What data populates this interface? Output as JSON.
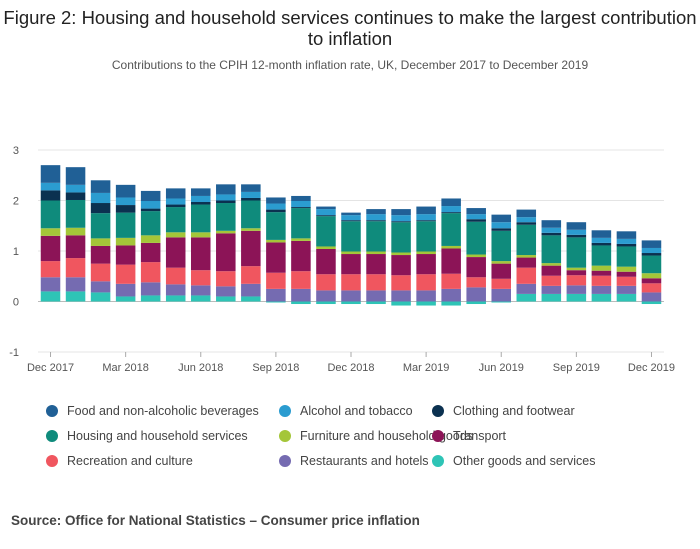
{
  "header": {
    "title": "Figure 2: Housing and household services continues to make the largest contribution to inflation",
    "subtitle": "Contributions to the CPIH 12-month inflation rate, UK, December 2017 to December 2019"
  },
  "footer": {
    "source": "Source: Office for National Statistics – Consumer price inflation"
  },
  "chart_data": {
    "type": "bar",
    "stacked": true,
    "title": "Figure 2: Housing and household services continues to make the largest contribution to inflation",
    "subtitle": "Contributions to the CPIH 12-month inflation rate, UK, December 2017 to December 2019",
    "xlabel": "",
    "ylabel": "",
    "ylim": [
      -1,
      3
    ],
    "yticks": [
      -1,
      0,
      1,
      2,
      3
    ],
    "grid": true,
    "legend_position": "bottom",
    "categories": [
      "Dec 2017",
      "Jan 2018",
      "Feb 2018",
      "Mar 2018",
      "Apr 2018",
      "May 2018",
      "Jun 2018",
      "Jul 2018",
      "Aug 2018",
      "Sep 2018",
      "Oct 2018",
      "Nov 2018",
      "Dec 2018",
      "Jan 2019",
      "Feb 2019",
      "Mar 2019",
      "Apr 2019",
      "May 2019",
      "Jun 2019",
      "Jul 2019",
      "Aug 2019",
      "Sep 2019",
      "Oct 2019",
      "Nov 2019",
      "Dec 2019"
    ],
    "xtick_labels": [
      "Dec 2017",
      "Mar 2018",
      "Jun 2018",
      "Sep 2018",
      "Dec 2018",
      "Mar 2019",
      "Jun 2019",
      "Sep 2019",
      "Dec 2019"
    ],
    "xtick_indices": [
      0,
      3,
      6,
      9,
      12,
      15,
      18,
      21,
      24
    ],
    "series": [
      {
        "name": "Other goods and services",
        "color": "#2ec4b6",
        "values": [
          0.2,
          0.2,
          0.18,
          0.1,
          0.12,
          0.12,
          0.12,
          0.1,
          0.1,
          -0.02,
          -0.05,
          -0.05,
          -0.05,
          -0.05,
          -0.08,
          -0.08,
          -0.08,
          -0.05,
          -0.02,
          0.15,
          0.15,
          0.15,
          0.15,
          0.15,
          -0.05
        ]
      },
      {
        "name": "Restaurants and hotels",
        "color": "#756bb1",
        "values": [
          0.28,
          0.28,
          0.22,
          0.25,
          0.26,
          0.22,
          0.2,
          0.2,
          0.25,
          0.25,
          0.25,
          0.22,
          0.22,
          0.22,
          0.22,
          0.22,
          0.25,
          0.28,
          0.25,
          0.2,
          0.16,
          0.17,
          0.16,
          0.16,
          0.18
        ]
      },
      {
        "name": "Recreation and culture",
        "color": "#f0565f",
        "values": [
          0.32,
          0.38,
          0.35,
          0.38,
          0.4,
          0.33,
          0.3,
          0.3,
          0.35,
          0.32,
          0.35,
          0.32,
          0.32,
          0.32,
          0.3,
          0.32,
          0.3,
          0.2,
          0.2,
          0.32,
          0.2,
          0.2,
          0.2,
          0.18,
          0.18
        ]
      },
      {
        "name": "Transport",
        "color": "#8c1457",
        "values": [
          0.5,
          0.45,
          0.35,
          0.38,
          0.38,
          0.6,
          0.65,
          0.75,
          0.7,
          0.6,
          0.6,
          0.5,
          0.4,
          0.4,
          0.4,
          0.4,
          0.5,
          0.4,
          0.3,
          0.2,
          0.2,
          0.1,
          0.1,
          0.1,
          0.1
        ]
      },
      {
        "name": "Furniture and household goods",
        "color": "#a4c639",
        "values": [
          0.15,
          0.15,
          0.15,
          0.15,
          0.15,
          0.1,
          0.1,
          0.05,
          0.05,
          0.05,
          0.05,
          0.05,
          0.05,
          0.05,
          0.05,
          0.05,
          0.05,
          0.05,
          0.05,
          0.05,
          0.05,
          0.05,
          0.1,
          0.1,
          0.1
        ]
      },
      {
        "name": "Housing and household services",
        "color": "#0f8b7c",
        "values": [
          0.55,
          0.55,
          0.5,
          0.5,
          0.48,
          0.5,
          0.55,
          0.55,
          0.55,
          0.55,
          0.6,
          0.6,
          0.6,
          0.6,
          0.6,
          0.6,
          0.65,
          0.65,
          0.6,
          0.6,
          0.55,
          0.6,
          0.4,
          0.4,
          0.35
        ]
      },
      {
        "name": "Clothing and footwear",
        "color": "#0b3150",
        "values": [
          0.2,
          0.15,
          0.2,
          0.15,
          0.05,
          0.05,
          0.05,
          0.05,
          0.05,
          0.05,
          0.02,
          0.02,
          0.02,
          0.02,
          0.02,
          0.02,
          0.02,
          0.05,
          0.05,
          0.05,
          0.05,
          0.05,
          0.05,
          0.05,
          0.05
        ]
      },
      {
        "name": "Alcohol and tobacco",
        "color": "#2b9cd0",
        "values": [
          0.15,
          0.15,
          0.2,
          0.15,
          0.15,
          0.12,
          0.12,
          0.12,
          0.12,
          0.12,
          0.12,
          0.12,
          0.1,
          0.12,
          0.12,
          0.12,
          0.12,
          0.1,
          0.12,
          0.1,
          0.1,
          0.1,
          0.1,
          0.1,
          0.1
        ]
      },
      {
        "name": "Food and non-alcoholic beverages",
        "color": "#206096",
        "values": [
          0.35,
          0.35,
          0.25,
          0.25,
          0.2,
          0.2,
          0.15,
          0.2,
          0.15,
          0.12,
          0.1,
          0.05,
          0.05,
          0.1,
          0.12,
          0.15,
          0.15,
          0.12,
          0.15,
          0.15,
          0.15,
          0.15,
          0.15,
          0.15,
          0.15
        ]
      }
    ],
    "legend_order": [
      "Food and non-alcoholic beverages",
      "Alcohol and tobacco",
      "Clothing and footwear",
      "Housing and household services",
      "Furniture and household goods",
      "Transport",
      "Recreation and culture",
      "Restaurants and hotels",
      "Other goods and services"
    ]
  }
}
